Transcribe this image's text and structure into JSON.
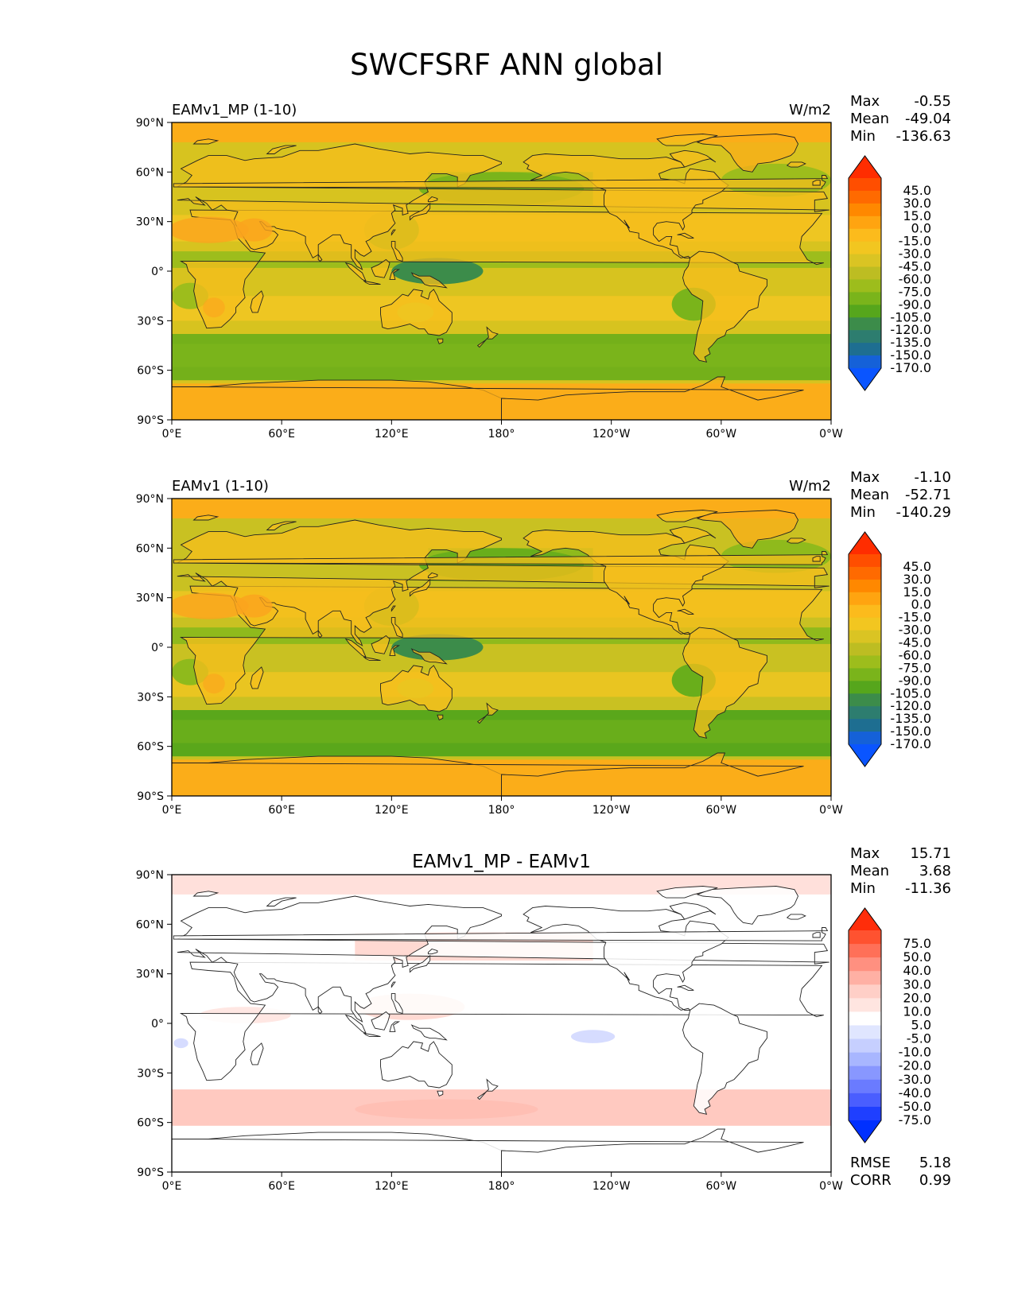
{
  "title": "SWCFSRF ANN global",
  "colors": {
    "frame": "#000000",
    "coast": "#222222",
    "land_mask_hint": "#000000"
  },
  "xticks": [
    "0°E",
    "60°E",
    "120°E",
    "180°",
    "120°W",
    "60°W",
    "0°W"
  ],
  "yticks": [
    "90°N",
    "60°N",
    "30°N",
    "0°",
    "30°S",
    "60°S",
    "90°S"
  ],
  "stats_labels": {
    "max": "Max",
    "mean": "Mean",
    "min": "Min"
  },
  "panels": [
    {
      "id": "test",
      "left_title": "EAMv1_MP (1-10)",
      "center_title": "",
      "right_title": "W/m2",
      "max": "-0.55",
      "mean": "-49.04",
      "min": "-136.63",
      "colorbar_labels": [
        "45.0",
        "30.0",
        "15.0",
        "0.0",
        "-15.0",
        "-30.0",
        "-45.0",
        "-60.0",
        "-75.0",
        "-90.0",
        "-105.0",
        "-120.0",
        "-135.0",
        "-150.0",
        "-170.0"
      ],
      "colorbar_colors": [
        "#ff2d00",
        "#ff4e00",
        "#ff6a00",
        "#ff8800",
        "#ffa410",
        "#fcbb1c",
        "#f2c620",
        "#dac423",
        "#bdbd22",
        "#9dbd1c",
        "#7ab41b",
        "#56a61c",
        "#3c8c4a",
        "#2d7d6f",
        "#1e6e91",
        "#1561d8",
        "#0a55ff"
      ],
      "field": {
        "ocean_base": "#d7c31f",
        "land_base": "#f6be1c",
        "polar": "#fbad19",
        "itcz": "#9dbd1c",
        "southern_ocean": "#74b01a",
        "stratocumulus": "#7ab41b",
        "warm_pool": "#3c8c4a",
        "desert": "#fba41e",
        "subtropics": "#eec622"
      }
    },
    {
      "id": "reference",
      "left_title": "EAMv1 (1-10)",
      "center_title": "",
      "right_title": "W/m2",
      "max": "-1.10",
      "mean": "-52.71",
      "min": "-140.29",
      "colorbar_labels": [
        "45.0",
        "30.0",
        "15.0",
        "0.0",
        "-15.0",
        "-30.0",
        "-45.0",
        "-60.0",
        "-75.0",
        "-90.0",
        "-105.0",
        "-120.0",
        "-135.0",
        "-150.0",
        "-170.0"
      ],
      "colorbar_colors": [
        "#ff2d00",
        "#ff4e00",
        "#ff6a00",
        "#ff8800",
        "#ffa410",
        "#fcbb1c",
        "#f2c620",
        "#dac423",
        "#bdbd22",
        "#9dbd1c",
        "#7ab41b",
        "#56a61c",
        "#3c8c4a",
        "#2d7d6f",
        "#1e6e91",
        "#1561d8",
        "#0a55ff"
      ],
      "field": {
        "ocean_base": "#c9c122",
        "land_base": "#f6be1c",
        "polar": "#fbad19",
        "itcz": "#8fba1c",
        "southern_ocean": "#5aa71b",
        "stratocumulus": "#69ae1b",
        "warm_pool": "#3c8c4a",
        "desert": "#fba41e",
        "subtropics": "#e9c521"
      }
    },
    {
      "id": "diff",
      "left_title": "",
      "center_title": "EAMv1_MP - EAMv1",
      "right_title": "",
      "max": "15.71",
      "mean": "3.68",
      "min": "-11.36",
      "rmse_label": "RMSE",
      "rmse": "5.18",
      "corr_label": "CORR",
      "corr": "0.99",
      "colorbar_labels": [
        "75.0",
        "50.0",
        "40.0",
        "30.0",
        "20.0",
        "10.0",
        "5.0",
        "-5.0",
        "-10.0",
        "-20.0",
        "-30.0",
        "-40.0",
        "-50.0",
        "-75.0"
      ],
      "colorbar_colors": [
        "#ff2d0a",
        "#ff5230",
        "#ff7058",
        "#ff9080",
        "#ffb0a4",
        "#ffcfc7",
        "#ffe5e0",
        "#ffffff",
        "#e0e6ff",
        "#c6cfff",
        "#a8b6ff",
        "#8897ff",
        "#6a7bff",
        "#4a5eff",
        "#1f3fff",
        "#0030ff"
      ],
      "field": {
        "ocean_base": "#ffffff",
        "land_base": "#ffffff",
        "polar": "#ffe0db",
        "itcz": "#ffd9d2",
        "southern_ocean": "#ffc9c0",
        "stratocumulus": "#ffe7e3",
        "warm_pool": "#ffbfb4",
        "desert": "#ffffff",
        "subtropics": "#ffffff",
        "negative_patch": "#d6dcff"
      }
    }
  ],
  "chart_data": [
    {
      "type": "heatmap",
      "title": "EAMv1_MP (1-10)",
      "units": "W/m2",
      "x": [
        "0°E",
        "60°E",
        "120°E",
        "180°",
        "120°W",
        "60°W",
        "0°W"
      ],
      "y": [
        "90°N",
        "60°N",
        "30°N",
        "0°",
        "30°S",
        "60°S",
        "90°S"
      ],
      "xlim": [
        0,
        360
      ],
      "ylim": [
        -90,
        90
      ],
      "levels": [
        -170,
        -150,
        -135,
        -120,
        -105,
        -90,
        -75,
        -60,
        -45,
        -30,
        -15,
        0,
        15,
        30,
        45
      ],
      "max": -0.55,
      "mean": -49.04,
      "min": -136.63
    },
    {
      "type": "heatmap",
      "title": "EAMv1 (1-10)",
      "units": "W/m2",
      "x": [
        "0°E",
        "60°E",
        "120°E",
        "180°",
        "120°W",
        "60°W",
        "0°W"
      ],
      "y": [
        "90°N",
        "60°N",
        "30°N",
        "0°",
        "30°S",
        "60°S",
        "90°S"
      ],
      "xlim": [
        0,
        360
      ],
      "ylim": [
        -90,
        90
      ],
      "levels": [
        -170,
        -150,
        -135,
        -120,
        -105,
        -90,
        -75,
        -60,
        -45,
        -30,
        -15,
        0,
        15,
        30,
        45
      ],
      "max": -1.1,
      "mean": -52.71,
      "min": -140.29
    },
    {
      "type": "heatmap",
      "title": "EAMv1_MP - EAMv1",
      "units": "W/m2",
      "x": [
        "0°E",
        "60°E",
        "120°E",
        "180°",
        "120°W",
        "60°W",
        "0°W"
      ],
      "y": [
        "90°N",
        "60°N",
        "30°N",
        "0°",
        "30°S",
        "60°S",
        "90°S"
      ],
      "xlim": [
        0,
        360
      ],
      "ylim": [
        -90,
        90
      ],
      "levels": [
        -75,
        -50,
        -40,
        -30,
        -20,
        -10,
        -5,
        5,
        10,
        20,
        30,
        40,
        50,
        75
      ],
      "max": 15.71,
      "mean": 3.68,
      "min": -11.36,
      "rmse": 5.18,
      "corr": 0.99
    }
  ]
}
